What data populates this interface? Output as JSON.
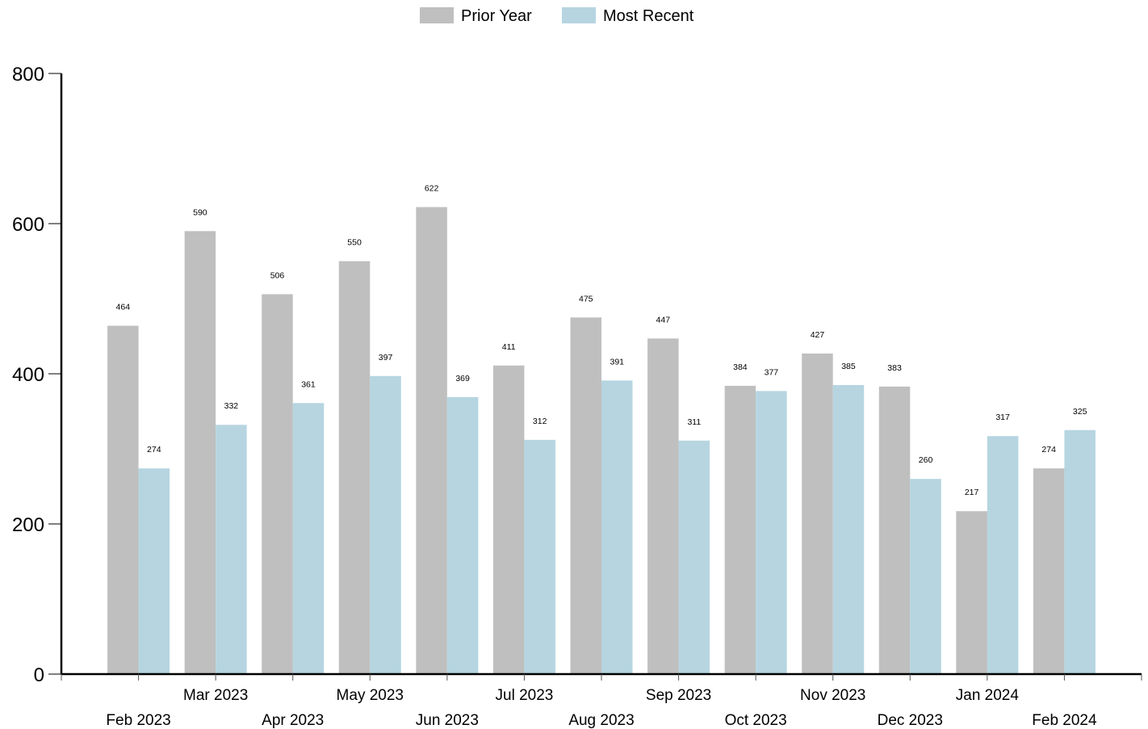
{
  "chart_data": {
    "type": "bar",
    "categories": [
      "Feb 2023",
      "Mar 2023",
      "Apr 2023",
      "May 2023",
      "Jun 2023",
      "Jul 2023",
      "Aug 2023",
      "Sep 2023",
      "Oct 2023",
      "Nov 2023",
      "Dec 2023",
      "Jan 2024",
      "Feb 2024"
    ],
    "series": [
      {
        "name": "Prior Year",
        "color": "#bfbfbf",
        "values": [
          464,
          590,
          506,
          550,
          622,
          411,
          475,
          447,
          384,
          427,
          383,
          217,
          274
        ]
      },
      {
        "name": "Most Recent",
        "color": "#b6d5e0",
        "values": [
          274,
          332,
          361,
          397,
          369,
          312,
          391,
          311,
          377,
          385,
          260,
          317,
          325
        ]
      }
    ],
    "title": "",
    "xlabel": "",
    "ylabel": "",
    "ylim": [
      0,
      800
    ],
    "yticks": [
      0,
      200,
      400,
      600,
      800
    ],
    "grid": false,
    "legend_position": "top-center",
    "x_labels_staggered": true
  }
}
